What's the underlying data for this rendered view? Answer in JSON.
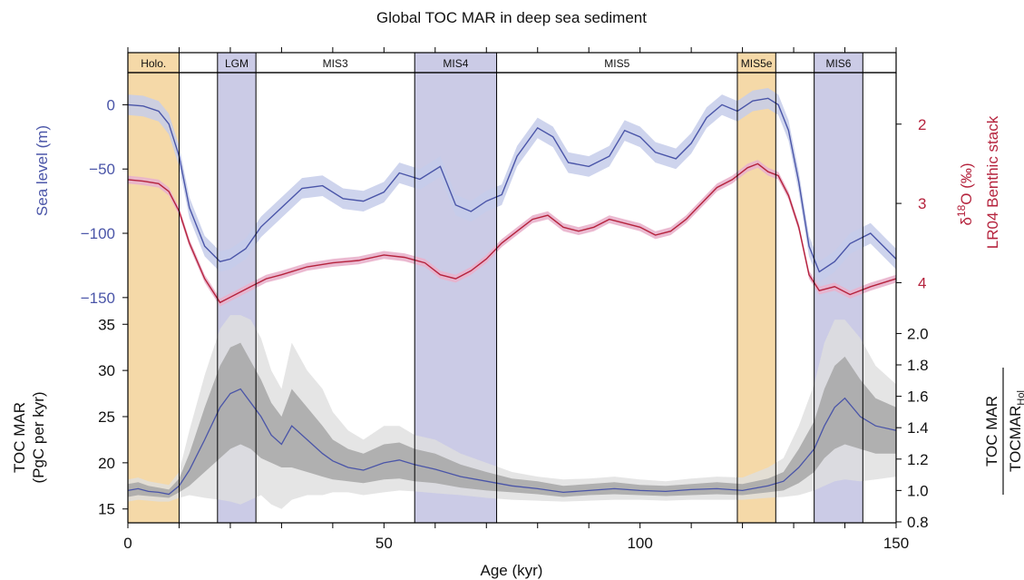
{
  "title": "Global TOC MAR in deep sea sediment",
  "colors": {
    "interglacial_band": "#f5d9a8",
    "glacial_band": "#cbcbe6",
    "sea_level": "#4a55a8",
    "sea_level_band": "#c5cdea",
    "d18o": "#b5233d",
    "d18o_band": "#e9b3cc",
    "toc_mean": "#4a55a8",
    "toc_inner_band": "#a3a3a3",
    "toc_outer_band": "#dedede"
  },
  "chart_data": [
    {
      "type": "line",
      "panel": "top",
      "xlabel": "Age (kyr)",
      "xlim": [
        0,
        150
      ],
      "x_ticks": [
        "0",
        "50",
        "100",
        "150"
      ],
      "ylabel": "Sea level (m)",
      "ylim": [
        -160,
        25
      ],
      "y_ticks": [
        "0",
        "−50",
        "−100",
        "−150"
      ],
      "y2_label_line1": "δ18O (‰)",
      "y2_label_line2": "LR04 Benthic stack",
      "y2lim": [
        4.35,
        1.35
      ],
      "y2_ticks": [
        "2",
        "3",
        "4"
      ],
      "stages": [
        {
          "label": "Holo.",
          "start": 0,
          "end": 10,
          "kind": "interglacial"
        },
        {
          "label": "LGM",
          "start": 17.5,
          "end": 25,
          "kind": "glacial"
        },
        {
          "label": "MIS3",
          "start": 25,
          "end": 56,
          "kind": "none"
        },
        {
          "label": "MIS4",
          "start": 56,
          "end": 72,
          "kind": "glacial"
        },
        {
          "label": "MIS5",
          "start": 72,
          "end": 119,
          "kind": "none"
        },
        {
          "label": "MIS5e",
          "start": 119,
          "end": 126.5,
          "kind": "interglacial"
        },
        {
          "label": "MIS6",
          "start": 134,
          "end": 143.5,
          "kind": "glacial"
        }
      ],
      "series": [
        {
          "axis": "left",
          "x": [
            0,
            3,
            6,
            8,
            10,
            12,
            15,
            18,
            20,
            23,
            26,
            30,
            34,
            38,
            42,
            46,
            50,
            53,
            57,
            61,
            64,
            67,
            70,
            73,
            76,
            80,
            83,
            86,
            90,
            94,
            97,
            100,
            103,
            107,
            110,
            113,
            116,
            119,
            122,
            125,
            127,
            129,
            131,
            133,
            135,
            138,
            141,
            145,
            148,
            150
          ],
          "values": [
            0,
            -1,
            -5,
            -15,
            -40,
            -80,
            -110,
            -122,
            -120,
            -112,
            -95,
            -80,
            -65,
            -63,
            -73,
            -75,
            -68,
            -53,
            -58,
            -48,
            -78,
            -83,
            -75,
            -70,
            -40,
            -18,
            -25,
            -45,
            -48,
            -40,
            -20,
            -25,
            -37,
            -42,
            -30,
            -10,
            0,
            -5,
            3,
            5,
            0,
            -20,
            -60,
            -110,
            -130,
            -122,
            -108,
            -100,
            -112,
            -120
          ],
          "band": 8
        },
        {
          "axis": "right",
          "x": [
            0,
            3,
            6,
            8,
            10,
            12,
            15,
            18,
            21,
            24,
            27,
            30,
            35,
            40,
            45,
            50,
            54,
            58,
            61,
            64,
            67,
            70,
            73,
            76,
            79,
            82,
            85,
            88,
            91,
            94,
            97,
            100,
            103,
            106,
            109,
            112,
            115,
            118,
            121,
            123,
            125,
            127,
            129,
            131,
            133,
            135,
            138,
            141,
            145,
            150
          ],
          "values": [
            2.7,
            2.72,
            2.75,
            2.85,
            3.1,
            3.5,
            3.95,
            4.25,
            4.15,
            4.05,
            3.95,
            3.9,
            3.8,
            3.75,
            3.72,
            3.65,
            3.68,
            3.75,
            3.9,
            3.95,
            3.85,
            3.7,
            3.5,
            3.35,
            3.2,
            3.15,
            3.3,
            3.35,
            3.3,
            3.2,
            3.25,
            3.3,
            3.4,
            3.35,
            3.2,
            3.0,
            2.8,
            2.7,
            2.55,
            2.5,
            2.6,
            2.65,
            2.9,
            3.3,
            3.9,
            4.1,
            4.05,
            4.15,
            4.05,
            3.95
          ],
          "band": 0.05
        }
      ]
    },
    {
      "type": "area",
      "panel": "bottom",
      "xlabel": "Age (kyr)",
      "xlim": [
        0,
        150
      ],
      "ylabel_line1": "TOC MAR",
      "ylabel_line2": "(PgC per kyr)",
      "ylim": [
        13.5,
        36.5
      ],
      "y_ticks": [
        "15",
        "20",
        "25",
        "30",
        "35"
      ],
      "y2_label_top": "TOC MAR",
      "y2_label_bottom": "TOCMAR",
      "y2_label_bottom_sub": "Hol",
      "y2lim": [
        0.794,
        2.147
      ],
      "y2_ticks": [
        "0.8",
        "1.0",
        "1.2",
        "1.4",
        "1.6",
        "1.8",
        "2.0"
      ],
      "x": [
        0,
        2,
        4,
        6,
        8,
        10,
        12,
        15,
        18,
        20,
        22,
        24,
        26,
        28,
        30,
        32,
        35,
        38,
        40,
        43,
        46,
        50,
        53,
        56,
        60,
        65,
        70,
        75,
        80,
        85,
        90,
        95,
        100,
        105,
        110,
        115,
        120,
        125,
        128,
        131,
        134,
        136,
        138,
        140,
        143,
        146,
        150
      ],
      "mean": [
        17.0,
        17.2,
        16.9,
        16.8,
        16.6,
        17.5,
        19.2,
        22.5,
        26.0,
        27.5,
        28.0,
        26.5,
        25.0,
        23.0,
        22.0,
        24.0,
        22.5,
        21.0,
        20.2,
        19.5,
        19.2,
        20.0,
        20.3,
        19.8,
        19.3,
        18.5,
        18.0,
        17.5,
        17.2,
        16.8,
        17.0,
        17.2,
        17.0,
        16.9,
        17.1,
        17.2,
        17.0,
        17.5,
        18.0,
        19.5,
        21.5,
        24.0,
        26.0,
        27.0,
        25.0,
        24.0,
        23.5
      ],
      "inner_low": [
        16.3,
        16.5,
        16.4,
        16.3,
        16.2,
        16.8,
        17.5,
        19.0,
        20.5,
        21.5,
        22.0,
        21.5,
        20.5,
        20.0,
        19.5,
        19.5,
        19.0,
        18.5,
        18.2,
        18.0,
        17.8,
        18.2,
        18.3,
        18.0,
        17.8,
        17.3,
        17.0,
        16.8,
        16.6,
        16.3,
        16.5,
        16.6,
        16.5,
        16.4,
        16.5,
        16.6,
        16.5,
        16.8,
        17.0,
        17.8,
        19.0,
        20.5,
        21.5,
        22.0,
        21.5,
        21.0,
        21.0
      ],
      "inner_high": [
        17.7,
        17.9,
        17.5,
        17.3,
        17.1,
        18.3,
        21.0,
        26.0,
        30.5,
        32.5,
        33.0,
        31.0,
        29.0,
        26.5,
        25.0,
        28.0,
        26.0,
        24.0,
        22.5,
        21.5,
        21.0,
        22.0,
        22.2,
        21.5,
        21.0,
        19.8,
        19.0,
        18.3,
        18.0,
        17.5,
        17.7,
        17.9,
        17.6,
        17.5,
        17.7,
        17.9,
        17.7,
        18.3,
        19.0,
        21.5,
        24.5,
        28.0,
        30.5,
        31.5,
        29.0,
        27.0,
        26.0
      ],
      "outer_low": [
        15.8,
        16.0,
        15.9,
        15.8,
        15.8,
        16.2,
        16.5,
        16.2,
        16.0,
        15.8,
        15.5,
        16.0,
        16.5,
        15.5,
        15.0,
        16.0,
        16.5,
        16.5,
        16.8,
        16.8,
        16.5,
        16.8,
        17.0,
        16.9,
        16.7,
        16.5,
        16.2,
        16.0,
        15.9,
        15.8,
        15.9,
        16.0,
        16.0,
        15.9,
        16.0,
        16.0,
        16.0,
        16.2,
        16.3,
        16.5,
        17.0,
        17.5,
        18.0,
        18.2,
        18.0,
        18.2,
        18.5
      ],
      "outer_high": [
        18.2,
        18.4,
        18.0,
        17.8,
        17.6,
        19.0,
        23.5,
        29.5,
        34.5,
        36.0,
        36.0,
        35.5,
        33.5,
        30.0,
        28.0,
        33.0,
        30.0,
        28.0,
        25.5,
        23.5,
        22.5,
        24.0,
        24.0,
        23.0,
        22.5,
        21.0,
        20.0,
        19.0,
        18.5,
        18.2,
        18.3,
        18.5,
        18.2,
        18.0,
        18.3,
        18.5,
        18.4,
        19.5,
        20.5,
        24.0,
        28.5,
        33.0,
        35.5,
        35.5,
        33.5,
        30.5,
        28.5
      ]
    }
  ]
}
